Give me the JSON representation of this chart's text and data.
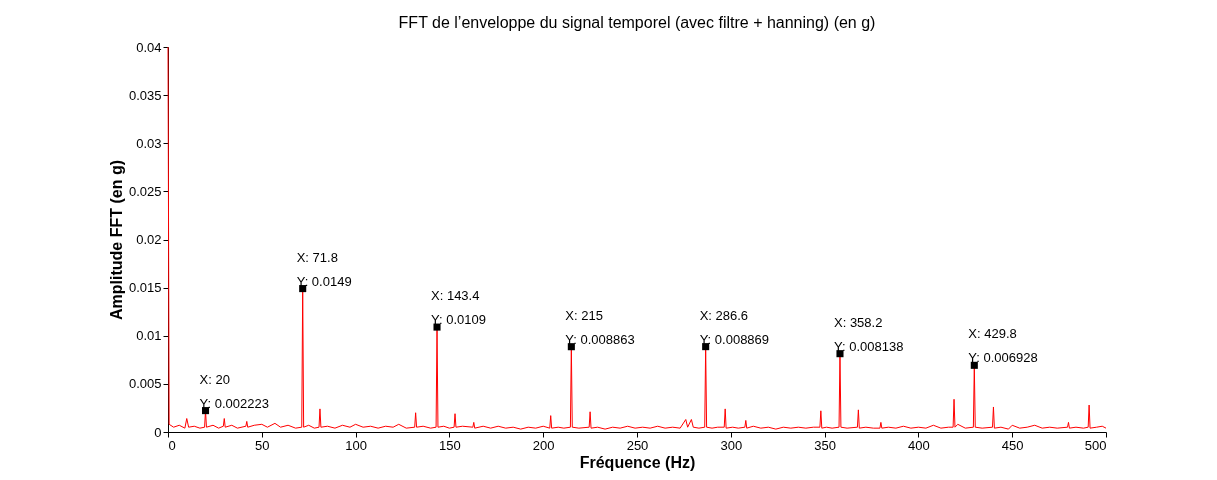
{
  "chart_data": {
    "type": "line",
    "title": "FFT de l’enveloppe du signal temporel (avec filtre + hanning) (en g)",
    "xlabel": "Fréquence (Hz)",
    "ylabel": "Amplitude FFT (en g)",
    "xlim": [
      0,
      500
    ],
    "xticks": [
      0,
      50,
      100,
      150,
      200,
      250,
      300,
      350,
      400,
      450,
      500
    ],
    "ylim": [
      0,
      0.04
    ],
    "yticks": [
      0,
      0.005,
      0.01,
      0.015,
      0.02,
      0.025,
      0.03,
      0.035,
      0.04
    ],
    "grid": false,
    "marker": "none",
    "line_style": "solid",
    "series": [
      {
        "color": "#ff0000",
        "x": [
          0,
          0.6,
          3,
          6,
          9,
          10,
          11,
          14,
          17,
          19.5,
          20,
          20.5,
          24,
          27,
          29.5,
          30,
          30.5,
          34,
          37,
          41.5,
          42,
          42.5,
          46,
          50,
          53,
          57,
          60,
          64,
          68,
          71.3,
          71.8,
          72.3,
          75,
          78,
          80.5,
          81,
          81.5,
          85,
          89,
          93,
          97,
          100,
          104,
          108,
          112,
          116,
          120,
          123,
          127,
          131.5,
          132,
          132.5,
          136,
          140,
          142.9,
          143.4,
          143.9,
          147,
          150,
          152.5,
          153,
          153.5,
          157,
          162.5,
          163,
          163.5,
          168,
          172,
          176,
          180,
          184,
          188,
          192,
          196,
          200,
          203.5,
          204,
          204.5,
          208,
          211,
          214.5,
          215,
          215.5,
          219,
          224.5,
          225,
          225.5,
          229,
          233,
          237,
          241,
          245,
          249,
          253,
          257,
          261,
          265,
          269,
          273,
          276,
          277,
          279,
          280,
          283,
          286.1,
          286.6,
          287.1,
          290,
          293,
          296.5,
          297,
          297.5,
          301,
          304,
          307.5,
          308,
          308.5,
          312,
          316,
          320,
          324,
          328,
          332,
          336,
          340,
          344,
          347.5,
          348,
          348.5,
          351,
          354,
          357.7,
          358.2,
          358.7,
          362,
          367.5,
          368,
          368.5,
          372,
          376,
          379.5,
          380,
          380.5,
          384,
          388,
          392,
          396,
          400,
          404,
          408,
          412,
          416,
          418.5,
          419,
          419.5,
          421,
          425,
          429.3,
          429.8,
          430.3,
          434,
          439.5,
          440,
          440.5,
          444,
          448,
          450,
          454,
          458,
          462,
          466,
          470,
          474,
          479.5,
          480,
          480.5,
          484,
          488,
          490.5,
          491,
          491.5,
          495,
          498,
          500
        ],
        "values": [
          0.04,
          0.0008,
          0.0005,
          0.0007,
          0.0004,
          0.0014,
          0.0005,
          0.0006,
          0.0004,
          0.0005,
          0.002223,
          0.0005,
          0.0007,
          0.0004,
          0.0006,
          0.0014,
          0.0005,
          0.0007,
          0.0004,
          0.0006,
          0.0011,
          0.0005,
          0.0007,
          0.0008,
          0.0005,
          0.0009,
          0.0005,
          0.0007,
          0.0004,
          0.0005,
          0.0149,
          0.0005,
          0.0007,
          0.0004,
          0.0005,
          0.0024,
          0.0005,
          0.0006,
          0.0004,
          0.0007,
          0.0005,
          0.0008,
          0.0005,
          0.0006,
          0.0004,
          0.0006,
          0.0005,
          0.0008,
          0.0004,
          0.0005,
          0.002,
          0.0005,
          0.0006,
          0.0004,
          0.0005,
          0.0109,
          0.0005,
          0.0006,
          0.0004,
          0.0005,
          0.0019,
          0.0005,
          0.0006,
          0.0005,
          0.001,
          0.0004,
          0.0006,
          0.0004,
          0.0006,
          0.0004,
          0.0005,
          0.0003,
          0.0005,
          0.0004,
          0.0006,
          0.0004,
          0.0017,
          0.0004,
          0.0005,
          0.0004,
          0.0005,
          0.008863,
          0.0005,
          0.0004,
          0.0005,
          0.0021,
          0.0004,
          0.0005,
          0.0003,
          0.0005,
          0.0004,
          0.0006,
          0.0004,
          0.0005,
          0.0004,
          0.0006,
          0.0004,
          0.0005,
          0.0004,
          0.0013,
          0.0005,
          0.0013,
          0.0005,
          0.0004,
          0.0005,
          0.008869,
          0.0005,
          0.0004,
          0.0005,
          0.0005,
          0.0024,
          0.0004,
          0.0005,
          0.0004,
          0.0005,
          0.0012,
          0.0004,
          0.0006,
          0.0004,
          0.0005,
          0.0003,
          0.0005,
          0.0004,
          0.0005,
          0.0004,
          0.0005,
          0.0005,
          0.0022,
          0.0004,
          0.0005,
          0.0004,
          0.0005,
          0.008138,
          0.0005,
          0.0004,
          0.0005,
          0.0023,
          0.0004,
          0.0005,
          0.0004,
          0.0004,
          0.001,
          0.0004,
          0.0005,
          0.0004,
          0.0006,
          0.0004,
          0.0005,
          0.0004,
          0.0007,
          0.0004,
          0.0005,
          0.0005,
          0.0034,
          0.0005,
          0.0008,
          0.0004,
          0.0005,
          0.006928,
          0.0005,
          0.0004,
          0.0005,
          0.0026,
          0.0004,
          0.0005,
          0.0003,
          0.0007,
          0.0004,
          0.0005,
          0.0007,
          0.0004,
          0.0005,
          0.0004,
          0.0005,
          0.001,
          0.0004,
          0.0005,
          0.0004,
          0.0005,
          0.0028,
          0.0004,
          0.0005,
          0.0006,
          0.0004
        ]
      }
    ],
    "annotations": [
      {
        "text": "X: 20\nY: 0.002223",
        "x": 20,
        "y": 0.002223
      },
      {
        "text": "X: 71.8\nY: 0.0149",
        "x": 71.8,
        "y": 0.0149
      },
      {
        "text": "X: 143.4\nY: 0.0109",
        "x": 143.4,
        "y": 0.0109
      },
      {
        "text": "X: 215\nY: 0.008863",
        "x": 215,
        "y": 0.008863
      },
      {
        "text": "X: 286.6\nY: 0.008869",
        "x": 286.6,
        "y": 0.008869
      },
      {
        "text": "X: 358.2\nY: 0.008138",
        "x": 358.2,
        "y": 0.008138
      },
      {
        "text": "X: 429.8\nY: 0.006928",
        "x": 429.8,
        "y": 0.006928
      }
    ]
  }
}
